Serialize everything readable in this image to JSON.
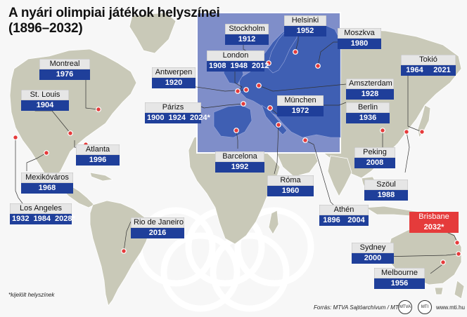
{
  "title_line1": "A nyári olimpiai játékok helyszínei",
  "title_line2": "(1896–2032)",
  "colors": {
    "ocean": "#f7f7f7",
    "land": "#c9c9b8",
    "europe_inset": "#7f8ec9",
    "europe_land": "#3f5fb3",
    "label_blue": "#1f3f9a",
    "label_red": "#e53b3b",
    "dot": "#e53b3b",
    "rings": "#ffffff"
  },
  "cities": [
    {
      "id": "montreal",
      "name": "Montreal",
      "years": [
        "1976"
      ]
    },
    {
      "id": "st-louis",
      "name": "St. Louis",
      "years": [
        "1904"
      ]
    },
    {
      "id": "atlanta",
      "name": "Atlanta",
      "years": [
        "1996"
      ]
    },
    {
      "id": "mexikovaros",
      "name": "Mexikóváros",
      "years": [
        "1968"
      ]
    },
    {
      "id": "los-angeles",
      "name": "Los Angeles",
      "years": [
        "1932",
        "1984",
        "2028*"
      ]
    },
    {
      "id": "rio",
      "name": "Rio de Janeiro",
      "years": [
        "2016"
      ]
    },
    {
      "id": "antwerpen",
      "name": "Antwerpen",
      "years": [
        "1920"
      ]
    },
    {
      "id": "parizs",
      "name": "Párizs",
      "years": [
        "1900",
        "1924",
        "2024*"
      ]
    },
    {
      "id": "london",
      "name": "London",
      "years": [
        "1908",
        "1948",
        "2012"
      ]
    },
    {
      "id": "stockholm",
      "name": "Stockholm",
      "years": [
        "1912"
      ]
    },
    {
      "id": "helsinki",
      "name": "Helsinki",
      "years": [
        "1952"
      ]
    },
    {
      "id": "moszkva",
      "name": "Moszkva",
      "years": [
        "1980"
      ]
    },
    {
      "id": "amszterdam",
      "name": "Amszterdam",
      "years": [
        "1928"
      ]
    },
    {
      "id": "berlin",
      "name": "Berlin",
      "years": [
        "1936"
      ]
    },
    {
      "id": "munchen",
      "name": "München",
      "years": [
        "1972"
      ]
    },
    {
      "id": "barcelona",
      "name": "Barcelona",
      "years": [
        "1992"
      ]
    },
    {
      "id": "roma",
      "name": "Róma",
      "years": [
        "1960"
      ]
    },
    {
      "id": "athen",
      "name": "Athén",
      "years": [
        "1896",
        "2004"
      ]
    },
    {
      "id": "tokio",
      "name": "Tokió",
      "years": [
        "1964",
        "2021"
      ]
    },
    {
      "id": "peking",
      "name": "Peking",
      "years": [
        "2008"
      ]
    },
    {
      "id": "szoul",
      "name": "Szöul",
      "years": [
        "1988"
      ]
    },
    {
      "id": "brisbane",
      "name": "Brisbane",
      "years": [
        "2032*"
      ],
      "highlight": true
    },
    {
      "id": "sydney",
      "name": "Sydney",
      "years": [
        "2000"
      ]
    },
    {
      "id": "melbourne",
      "name": "Melbourne",
      "years": [
        "1956"
      ]
    }
  ],
  "footnote": "*kijelölt helyszínek",
  "source": "Forrás: MTVA Sajtóarchívum / MTI",
  "logo1": "MTVA",
  "logo2": "MTI",
  "url": "www.mti.hu"
}
